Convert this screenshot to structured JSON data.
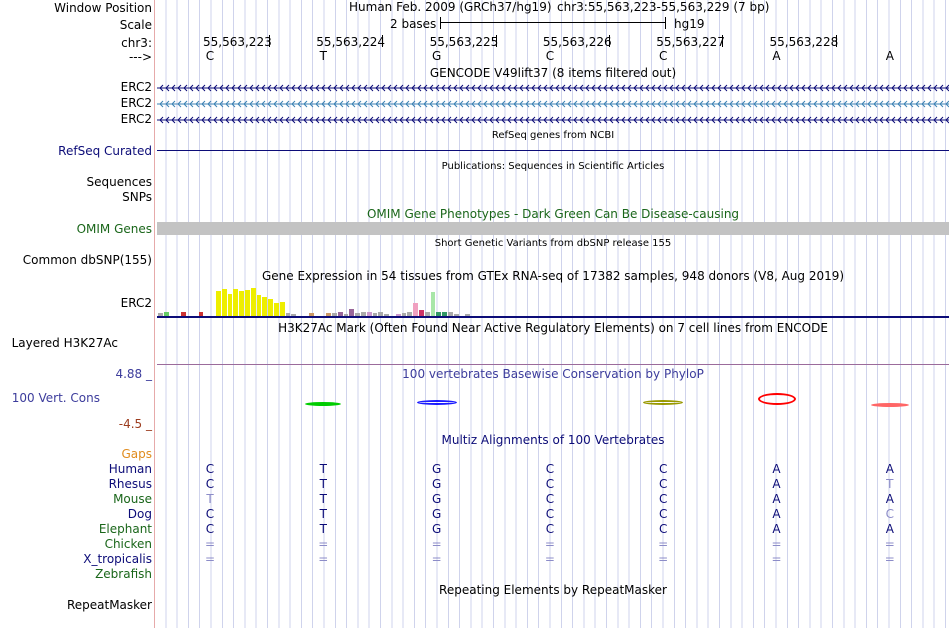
{
  "header": {
    "window_position_label": "Window Position",
    "assembly_title": "Human Feb. 2009 (GRCh37/hg19)",
    "position": "chr3:55,563,223-55,563,229 (7 bp)",
    "scale_label": "Scale",
    "scale_value": "2 bases",
    "scale_db": "hg19",
    "chrom_label": "chr3:",
    "strand_label": "--->"
  },
  "ruler": {
    "positions": [
      "55,563,223",
      "55,563,224",
      "55,563,225",
      "55,563,226",
      "55,563,227",
      "55,563,228"
    ]
  },
  "sequence": [
    "C",
    "T",
    "G",
    "C",
    "C",
    "A",
    "A"
  ],
  "tracks": {
    "gencode": {
      "title": "GENCODE V49lift37 (8 items filtered out)",
      "items": [
        {
          "name": "ERC2",
          "color": "#0c0c78"
        },
        {
          "name": "ERC2",
          "color": "#3c82b4"
        },
        {
          "name": "ERC2",
          "color": "#0c0c78"
        }
      ]
    },
    "refseq": {
      "title": "RefSeq genes from NCBI",
      "label": "RefSeq Curated"
    },
    "publications": {
      "title": "Publications: Sequences in Scientific Articles",
      "label_sequences": "Sequences",
      "label_snps": "SNPs"
    },
    "omim": {
      "title": "OMIM Gene Phenotypes - Dark Green Can Be Disease-causing",
      "label": "OMIM Genes"
    },
    "dbsnp": {
      "title": "Short Genetic Variants from dbSNP release 155",
      "label": "Common dbSNP(155)"
    },
    "gtex": {
      "title": "Gene Expression in 54 tissues from GTEx RNA-seq of 17382 samples, 948 donors (V8, Aug 2019)",
      "label": "ERC2",
      "values": [
        0.4,
        0.5,
        0,
        0,
        0.5,
        0,
        0,
        0.5,
        0,
        0,
        3.4,
        3.6,
        2.9,
        3.6,
        3.4,
        3.5,
        3.7,
        2.8,
        2.6,
        2.3,
        1.8,
        1.9,
        0.4,
        0.3,
        0,
        0,
        0.4,
        0,
        0,
        0.4,
        0.4,
        0.6,
        0.3,
        0.9,
        0.4,
        0.5,
        0.6,
        0.4,
        0.5,
        0.3,
        0,
        0.3,
        0.4,
        0.5,
        1.7,
        0.8,
        0.6,
        3.2,
        0.5,
        0.6,
        0.5,
        0.3,
        0,
        0.3
      ],
      "colors": [
        "#aaaaaa",
        "#66cc66",
        "#aaaaaa",
        "#aaaaaa",
        "#cc3333",
        "#aaaaaa",
        "#aaaaaa",
        "#cc3333",
        "#aaaaaa",
        "#aaaaaa",
        "#eeee00",
        "#eeee00",
        "#eeee00",
        "#eeee00",
        "#eeee00",
        "#eeee00",
        "#eeee00",
        "#eeee00",
        "#eeee00",
        "#eeee00",
        "#eeee00",
        "#eeee00",
        "#aaaaaa",
        "#aaaaaa",
        "#aaaaaa",
        "#aaaaaa",
        "#cc9966",
        "#aaaaaa",
        "#aaaaaa",
        "#cc9966",
        "#aaaaaa",
        "#996699",
        "#aaaaaa",
        "#996699",
        "#aaaaaa",
        "#aaaaaa",
        "#cc99cc",
        "#aaaaaa",
        "#aaaaaa",
        "#aaaaaa",
        "#aaaaaa",
        "#cc99cc",
        "#aaaaaa",
        "#aaaaaa",
        "#f0a0c0",
        "#cc3366",
        "#aaaaaa",
        "#a8e6a8",
        "#339966",
        "#339966",
        "#aaaaaa",
        "#aaaaaa",
        "#aaaaaa",
        "#aaaaaa"
      ]
    },
    "h3k27ac": {
      "title": "H3K27Ac Mark (Often Found Near Active Regulatory Elements) on 7 cell lines from ENCODE",
      "label": "Layered H3K27Ac"
    },
    "conservation": {
      "title": "100 vertebrates Basewise Conservation by PhyloP",
      "label": "100 Vert. Cons",
      "ymax": "4.88 _",
      "ymin": "-4.5 _",
      "logo_colors": [
        "#00cc00",
        "#1a1aff",
        "#999900",
        "#ff0000",
        "#ff6666"
      ]
    },
    "multiz": {
      "title": "Multiz Alignments of 100 Vertebrates",
      "gaps_label": "Gaps",
      "species": [
        {
          "name": "Human",
          "color": "#0c0c78",
          "bases": [
            "C",
            "T",
            "G",
            "C",
            "C",
            "A",
            "A"
          ]
        },
        {
          "name": "Rhesus",
          "color": "#0c0c78",
          "bases": [
            "C",
            "T",
            "G",
            "C",
            "C",
            "A",
            "T"
          ]
        },
        {
          "name": "Mouse",
          "color": "#1a661a",
          "bases": [
            "T",
            "T",
            "G",
            "C",
            "C",
            "A",
            "A"
          ]
        },
        {
          "name": "Dog",
          "color": "#0c0c78",
          "bases": [
            "C",
            "T",
            "G",
            "C",
            "C",
            "A",
            "C"
          ]
        },
        {
          "name": "Elephant",
          "color": "#1a661a",
          "bases": [
            "C",
            "T",
            "G",
            "C",
            "C",
            "A",
            "A"
          ]
        },
        {
          "name": "Chicken",
          "color": "#1a661a",
          "bases": [
            "=",
            "=",
            "=",
            "=",
            "=",
            "=",
            "="
          ]
        },
        {
          "name": "X_tropicalis",
          "color": "#0c0c78",
          "bases": [
            "=",
            "=",
            "=",
            "=",
            "=",
            "=",
            "="
          ]
        },
        {
          "name": "Zebrafish",
          "color": "#1a661a",
          "bases": [
            "",
            "",
            "",
            "",
            "",
            "",
            ""
          ]
        }
      ]
    },
    "repeatmasker": {
      "title": "Repeating Elements by RepeatMasker",
      "label": "RepeatMasker"
    }
  }
}
